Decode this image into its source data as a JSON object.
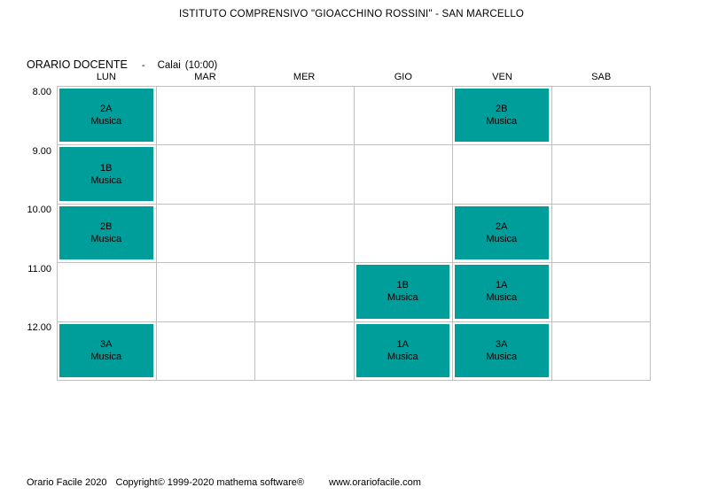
{
  "page": {
    "school_title": "ISTITUTO COMPRENSIVO \"GIOACCHINO ROSSINI\" - SAN MARCELLO"
  },
  "schedule_header": {
    "type_label": "ORARIO DOCENTE",
    "separator": "-",
    "teacher_name": "Calai",
    "weekly_hours": "(10:00)"
  },
  "timetable": {
    "days": [
      "LUN",
      "MAR",
      "MER",
      "GIO",
      "VEN",
      "SAB"
    ],
    "times": [
      "8.00",
      "9.00",
      "10.00",
      "11.00",
      "12.00"
    ],
    "grid": [
      [
        {
          "cls": "2A",
          "subj": "Musica"
        },
        null,
        null,
        null,
        {
          "cls": "2B",
          "subj": "Musica"
        },
        null
      ],
      [
        {
          "cls": "1B",
          "subj": "Musica"
        },
        null,
        null,
        null,
        null,
        null
      ],
      [
        {
          "cls": "2B",
          "subj": "Musica"
        },
        null,
        null,
        null,
        {
          "cls": "2A",
          "subj": "Musica"
        },
        null
      ],
      [
        null,
        null,
        null,
        {
          "cls": "1B",
          "subj": "Musica"
        },
        {
          "cls": "1A",
          "subj": "Musica"
        },
        null
      ],
      [
        {
          "cls": "3A",
          "subj": "Musica"
        },
        null,
        null,
        {
          "cls": "1A",
          "subj": "Musica"
        },
        {
          "cls": "3A",
          "subj": "Musica"
        },
        null
      ]
    ]
  },
  "colors": {
    "lesson_bg": "#009E9B",
    "grid_border": "#C0C0C0"
  },
  "footer": {
    "app_name": "Orario Facile 2020",
    "copyright": "Copyright© 1999-2020 mathema software®",
    "website": "www.orariofacile.com"
  }
}
